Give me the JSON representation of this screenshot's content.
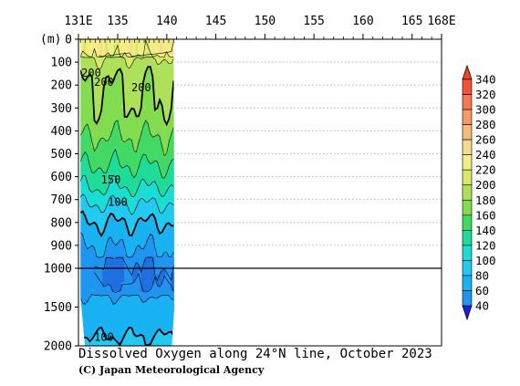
{
  "chart_data": {
    "type": "heatmap",
    "title": "Dissolved Oxygen along 24°N line, October 2023",
    "credit": "(C) Japan Meteorological Agency",
    "y_unit": "(m)",
    "x_ticks": [
      "131E",
      "135",
      "140",
      "145",
      "150",
      "155",
      "160",
      "165",
      "168E"
    ],
    "x_tick_values": [
      131,
      135,
      140,
      145,
      150,
      155,
      160,
      165,
      168
    ],
    "x_range": [
      131,
      168
    ],
    "y_ticks_upper": [
      "0",
      "100",
      "200",
      "300",
      "400",
      "500",
      "600",
      "700",
      "800",
      "900",
      "1000"
    ],
    "y_ticks_lower": [
      "1500",
      "2000"
    ],
    "y_range": [
      0,
      2000
    ],
    "y_break_depth": 1000,
    "data_x_range": [
      131.2,
      140.7
    ],
    "contour_labels": [
      {
        "text": "200",
        "x": 132.3,
        "y": 145
      },
      {
        "text": "200",
        "x": 133.6,
        "y": 185
      },
      {
        "text": "200",
        "x": 137.4,
        "y": 210
      },
      {
        "text": "150",
        "x": 134.3,
        "y": 612
      },
      {
        "text": "100",
        "x": 135.0,
        "y": 710
      },
      {
        "text": "100",
        "x": 133.6,
        "y": 1880
      }
    ],
    "profile": [
      {
        "depth": 0,
        "value": 230
      },
      {
        "depth": 50,
        "value": 228
      },
      {
        "depth": 100,
        "value": 215
      },
      {
        "depth": 150,
        "value": 205
      },
      {
        "depth": 200,
        "value": 200
      },
      {
        "depth": 300,
        "value": 198
      },
      {
        "depth": 350,
        "value": 192
      },
      {
        "depth": 400,
        "value": 185
      },
      {
        "depth": 450,
        "value": 175
      },
      {
        "depth": 500,
        "value": 170
      },
      {
        "depth": 550,
        "value": 160
      },
      {
        "depth": 600,
        "value": 150
      },
      {
        "depth": 650,
        "value": 140
      },
      {
        "depth": 700,
        "value": 125
      },
      {
        "depth": 750,
        "value": 112
      },
      {
        "depth": 800,
        "value": 100
      },
      {
        "depth": 850,
        "value": 90
      },
      {
        "depth": 900,
        "value": 82
      },
      {
        "depth": 950,
        "value": 75
      },
      {
        "depth": 1000,
        "value": 70
      },
      {
        "depth": 1100,
        "value": 68
      },
      {
        "depth": 1200,
        "value": 70
      },
      {
        "depth": 1300,
        "value": 76
      },
      {
        "depth": 1400,
        "value": 82
      },
      {
        "depth": 1500,
        "value": 86
      },
      {
        "depth": 1600,
        "value": 90
      },
      {
        "depth": 1700,
        "value": 93
      },
      {
        "depth": 1800,
        "value": 97
      },
      {
        "depth": 1900,
        "value": 101
      },
      {
        "depth": 2000,
        "value": 104
      }
    ],
    "colorbar": {
      "labels": [
        "340",
        "320",
        "300",
        "280",
        "260",
        "240",
        "220",
        "200",
        "180",
        "160",
        "140",
        "120",
        "100",
        "80",
        "60",
        "40"
      ],
      "levels": [
        40,
        60,
        80,
        100,
        120,
        140,
        160,
        180,
        200,
        220,
        240,
        260,
        280,
        300,
        320,
        340
      ],
      "colors": [
        "#1f6fe0",
        "#1f95f0",
        "#19b2f2",
        "#22c9f0",
        "#1cddd4",
        "#1fdc98",
        "#42d964",
        "#82dc50",
        "#aee05a",
        "#d6ea68",
        "#f2ee86",
        "#f6dc8a",
        "#f8bb76",
        "#f99960",
        "#f6784c",
        "#f05436"
      ],
      "under_color": "#1b1fe0",
      "over_color": "#ea4a1f"
    }
  }
}
